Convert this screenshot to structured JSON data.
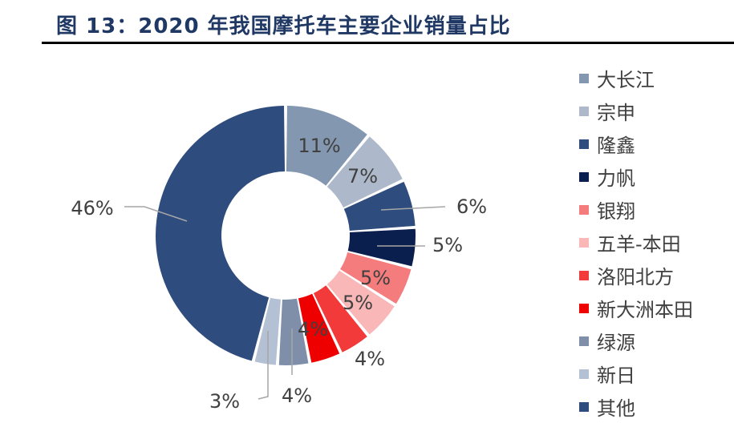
{
  "figure": {
    "title": "图 13：2020 年我国摩托车主要企业销量占比"
  },
  "chart_data": {
    "type": "pie",
    "donut": true,
    "legend": "right",
    "categories": [
      "大长江",
      "宗申",
      "隆鑫",
      "力帆",
      "银翔",
      "五羊-本田",
      "洛阳北方",
      "新大洲本田",
      "绿源",
      "新日",
      "其他"
    ],
    "values": [
      11,
      7,
      6,
      5,
      5,
      5,
      4,
      4,
      4,
      3,
      46
    ],
    "labels": [
      "11%",
      "7%",
      "6%",
      "5%",
      "5%",
      "5%",
      "4%",
      "4%",
      "4%",
      "3%",
      "46%"
    ],
    "colors": [
      "#8497b0",
      "#adb9ca",
      "#2f4c7e",
      "#0b1f4f",
      "#f47c7c",
      "#f9b7b7",
      "#f23a3a",
      "#ef0000",
      "#7f8faa",
      "#b4c0d3",
      "#2f4c7e"
    ]
  }
}
